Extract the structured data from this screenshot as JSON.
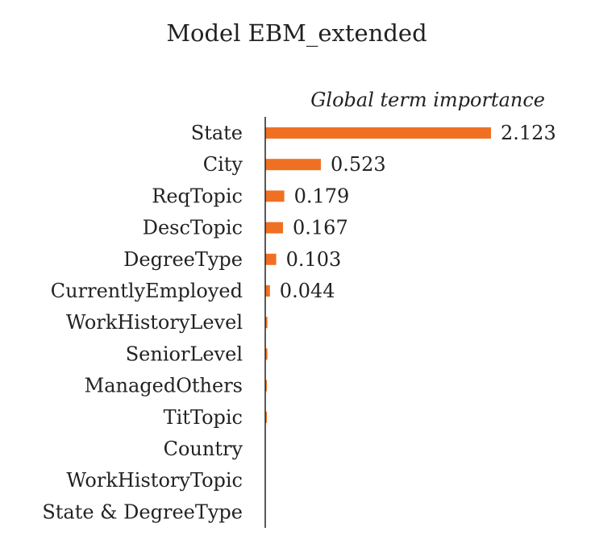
{
  "chart_data": {
    "type": "bar",
    "orientation": "horizontal",
    "title": "Model EBM_extended",
    "subtitle": "Global term importance",
    "categories": [
      "State",
      "City",
      "ReqTopic",
      "DescTopic",
      "DegreeType",
      "CurrentlyEmployed",
      "WorkHistoryLevel",
      "SeniorLevel",
      "ManagedOthers",
      "TitTopic",
      "Country",
      "WorkHistoryTopic",
      "State & DegreeType"
    ],
    "values": [
      2.123,
      0.523,
      0.179,
      0.167,
      0.103,
      0.044,
      0.02,
      0.02,
      0.015,
      0.015,
      0.0,
      0.0,
      0.0
    ],
    "data_labels": [
      "2.123",
      "0.523",
      "0.179",
      "0.167",
      "0.103",
      "0.044",
      "",
      "",
      "",
      "",
      "",
      "",
      ""
    ],
    "xlim": [
      0,
      2.55
    ],
    "bar_color": "#f07023",
    "grid": false,
    "legend": "none"
  }
}
